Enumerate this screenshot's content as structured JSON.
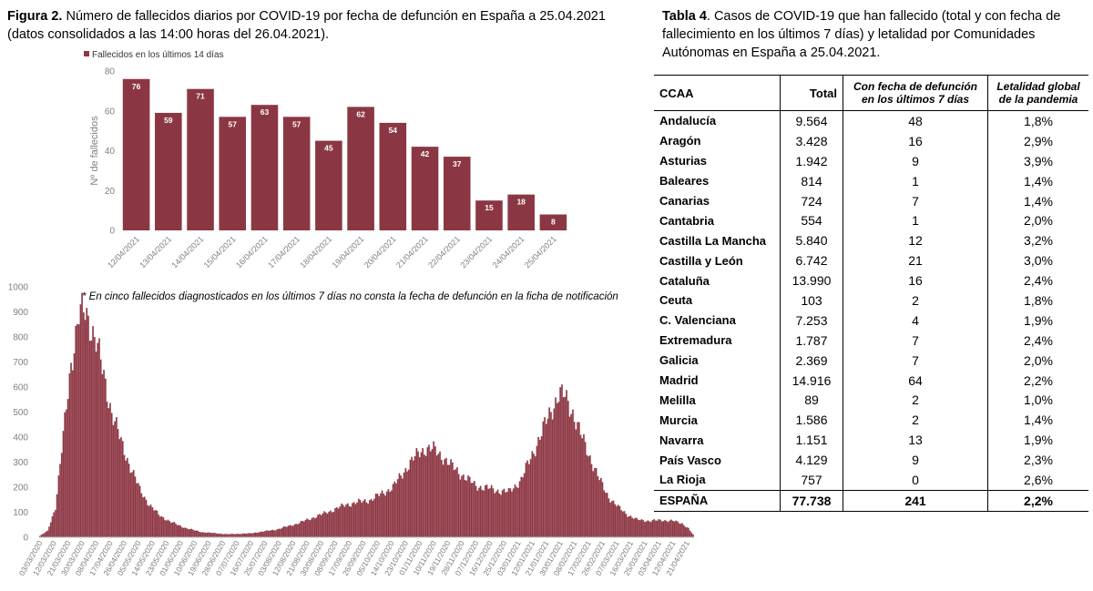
{
  "figure": {
    "title_bold": "Figura 2.",
    "title_rest": " Número de fallecidos diarios por COVID-19 por fecha de defunción en España a 25.04.2021 (datos consolidados a las 14:00 horas del 26.04.2021)."
  },
  "table": {
    "title_bold": "Tabla 4",
    "title_rest": ". Casos de COVID-19 que han fallecido (total y con fecha de fallecimiento en los últimos 7 días) y letalidad por Comunidades Autónomas en España a 25.04.2021.",
    "headers": [
      "CCAA",
      "Total",
      "Con fecha de defunción en los últimos 7 días",
      "Letalidad global de la pandemia"
    ],
    "rows": [
      [
        "Andalucía",
        "9.564",
        "48",
        "1,8%"
      ],
      [
        "Aragón",
        "3.428",
        "16",
        "2,9%"
      ],
      [
        "Asturias",
        "1.942",
        "9",
        "3,9%"
      ],
      [
        "Baleares",
        "814",
        "1",
        "1,4%"
      ],
      [
        "Canarias",
        "724",
        "7",
        "1,4%"
      ],
      [
        "Cantabria",
        "554",
        "1",
        "2,0%"
      ],
      [
        "Castilla La Mancha",
        "5.840",
        "12",
        "3,2%"
      ],
      [
        "Castilla y León",
        "6.742",
        "21",
        "3,0%"
      ],
      [
        "Cataluña",
        "13.990",
        "16",
        "2,4%"
      ],
      [
        "Ceuta",
        "103",
        "2",
        "1,8%"
      ],
      [
        "C. Valenciana",
        "7.253",
        "4",
        "1,9%"
      ],
      [
        "Extremadura",
        "1.787",
        "7",
        "2,4%"
      ],
      [
        "Galicia",
        "2.369",
        "7",
        "2,0%"
      ],
      [
        "Madrid",
        "14.916",
        "64",
        "2,2%"
      ],
      [
        "Melilla",
        "89",
        "2",
        "1,0%"
      ],
      [
        "Murcia",
        "1.586",
        "2",
        "1,4%"
      ],
      [
        "Navarra",
        "1.151",
        "13",
        "1,9%"
      ],
      [
        "País Vasco",
        "4.129",
        "9",
        "2,3%"
      ],
      [
        "La Rioja",
        "757",
        "0",
        "2,6%"
      ]
    ],
    "total": [
      "ESPAÑA",
      "77.738",
      "241",
      "2,2%"
    ]
  },
  "footnote": "* En cinco  fallecidos diagnosticados en los últimos 7 días no consta la fecha de defunción en la ficha de notificación",
  "colors": {
    "bar": "#8b3743",
    "bar_line": "#a85a66",
    "axis_text": "#7f7f7f"
  },
  "chart_data": [
    {
      "type": "bar",
      "title": "",
      "legend": "Fallecidos en los últimos 14 días",
      "legend_placement": "top-left",
      "ylabel": "Nº de fallecidos",
      "ylim": [
        0,
        80
      ],
      "yticks": [
        0,
        20,
        40,
        60,
        80
      ],
      "grid": false,
      "categories": [
        "12/04/2021",
        "13/04/2021",
        "14/04/2021",
        "15/04/2021",
        "16/04/2021",
        "17/04/2021",
        "18/04/2021",
        "19/04/2021",
        "20/04/2021",
        "21/04/2021",
        "22/04/2021",
        "23/04/2021",
        "24/04/2021",
        "25/04/2021"
      ],
      "series": [
        {
          "name": "Fallecidos en los últimos 14 días",
          "values": [
            76,
            59,
            71,
            57,
            63,
            57,
            45,
            62,
            54,
            42,
            37,
            15,
            18,
            8
          ]
        }
      ]
    },
    {
      "type": "bar",
      "title": "",
      "ylim": [
        0,
        1000
      ],
      "yticks": [
        0,
        100,
        200,
        300,
        400,
        500,
        600,
        700,
        800,
        900,
        1000
      ],
      "grid": false,
      "x_start": "03/03/2020",
      "x_end": "25/04/2021",
      "xticks": [
        "03/03/2020",
        "12/03/2020",
        "21/03/2020",
        "30/03/2020",
        "08/04/2020",
        "17/04/2020",
        "26/04/2020",
        "05/05/2020",
        "14/05/2020",
        "23/05/2020",
        "01/06/2020",
        "10/06/2020",
        "19/06/2020",
        "28/06/2020",
        "07/07/2020",
        "16/07/2020",
        "25/07/2020",
        "03/08/2020",
        "12/08/2020",
        "21/08/2020",
        "30/08/2020",
        "08/09/2020",
        "17/09/2020",
        "26/09/2020",
        "05/10/2020",
        "14/10/2020",
        "23/10/2020",
        "01/11/2020",
        "10/11/2020",
        "19/11/2020",
        "28/11/2020",
        "07/12/2020",
        "16/12/2020",
        "25/12/2020",
        "03/01/2021",
        "12/01/2021",
        "21/01/2021",
        "30/01/2021",
        "08/02/2021",
        "17/02/2021",
        "26/02/2021",
        "07/03/2021",
        "16/03/2021",
        "25/03/2021",
        "03/04/2021",
        "12/04/2021",
        "21/04/2021"
      ],
      "series_profile": [
        [
          "03/03/2020",
          5
        ],
        [
          "08/03/2020",
          25
        ],
        [
          "13/03/2020",
          120
        ],
        [
          "18/03/2020",
          400
        ],
        [
          "23/03/2020",
          700
        ],
        [
          "28/03/2020",
          880
        ],
        [
          "01/04/2020",
          900
        ],
        [
          "04/04/2020",
          860
        ],
        [
          "08/04/2020",
          780
        ],
        [
          "13/04/2020",
          640
        ],
        [
          "18/04/2020",
          500
        ],
        [
          "24/04/2020",
          380
        ],
        [
          "30/04/2020",
          280
        ],
        [
          "06/05/2020",
          190
        ],
        [
          "12/05/2020",
          130
        ],
        [
          "18/05/2020",
          90
        ],
        [
          "26/05/2020",
          60
        ],
        [
          "05/06/2020",
          35
        ],
        [
          "15/06/2020",
          20
        ],
        [
          "01/07/2020",
          12
        ],
        [
          "15/07/2020",
          15
        ],
        [
          "01/08/2020",
          30
        ],
        [
          "15/08/2020",
          55
        ],
        [
          "01/09/2020",
          95
        ],
        [
          "15/09/2020",
          130
        ],
        [
          "01/10/2020",
          150
        ],
        [
          "15/10/2020",
          200
        ],
        [
          "25/10/2020",
          290
        ],
        [
          "01/11/2020",
          340
        ],
        [
          "05/11/2020",
          355
        ],
        [
          "10/11/2020",
          350
        ],
        [
          "16/11/2020",
          320
        ],
        [
          "22/11/2020",
          280
        ],
        [
          "30/11/2020",
          240
        ],
        [
          "07/12/2020",
          205
        ],
        [
          "15/12/2020",
          195
        ],
        [
          "22/12/2020",
          185
        ],
        [
          "28/12/2020",
          180
        ],
        [
          "05/01/2021",
          230
        ],
        [
          "12/01/2021",
          330
        ],
        [
          "19/01/2021",
          430
        ],
        [
          "25/01/2021",
          520
        ],
        [
          "29/01/2021",
          570
        ],
        [
          "02/02/2021",
          560
        ],
        [
          "07/02/2021",
          500
        ],
        [
          "12/02/2021",
          410
        ],
        [
          "18/02/2021",
          320
        ],
        [
          "24/02/2021",
          230
        ],
        [
          "02/03/2021",
          160
        ],
        [
          "08/03/2021",
          120
        ],
        [
          "14/03/2021",
          90
        ],
        [
          "20/03/2021",
          70
        ],
        [
          "28/03/2021",
          65
        ],
        [
          "05/04/2021",
          68
        ],
        [
          "12/04/2021",
          65
        ],
        [
          "18/04/2021",
          55
        ],
        [
          "22/04/2021",
          35
        ],
        [
          "25/04/2021",
          10
        ]
      ]
    }
  ]
}
